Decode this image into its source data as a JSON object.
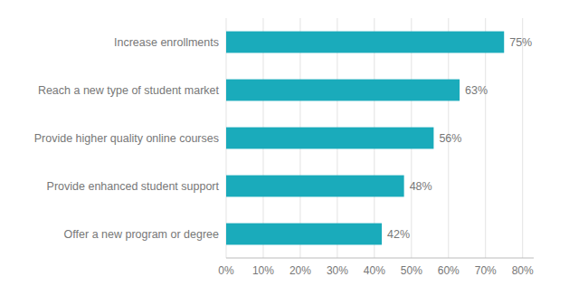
{
  "chart_data": {
    "type": "bar",
    "orientation": "horizontal",
    "categories": [
      "Offer a new program or degree",
      "Provide enhanced student support",
      "Provide higher quality online courses",
      "Reach a new type of student market",
      "Increase enrollments"
    ],
    "values": [
      42,
      48,
      56,
      63,
      75
    ],
    "value_labels": [
      "42%",
      "48%",
      "56%",
      "63%",
      "75%"
    ],
    "data_labels": true,
    "color": "#1aabbb",
    "xlim": [
      0,
      83
    ],
    "xticks": [
      {
        "value": 0,
        "label": "0%"
      },
      {
        "value": 10,
        "label": "10%"
      },
      {
        "value": 20,
        "label": "20%"
      },
      {
        "value": 30,
        "label": "30%"
      },
      {
        "value": 40,
        "label": "40%"
      },
      {
        "value": 50,
        "label": "50%"
      },
      {
        "value": 60,
        "label": "60%"
      },
      {
        "value": 70,
        "label": "70%"
      },
      {
        "value": 80,
        "label": "80%"
      }
    ],
    "grid": true
  }
}
